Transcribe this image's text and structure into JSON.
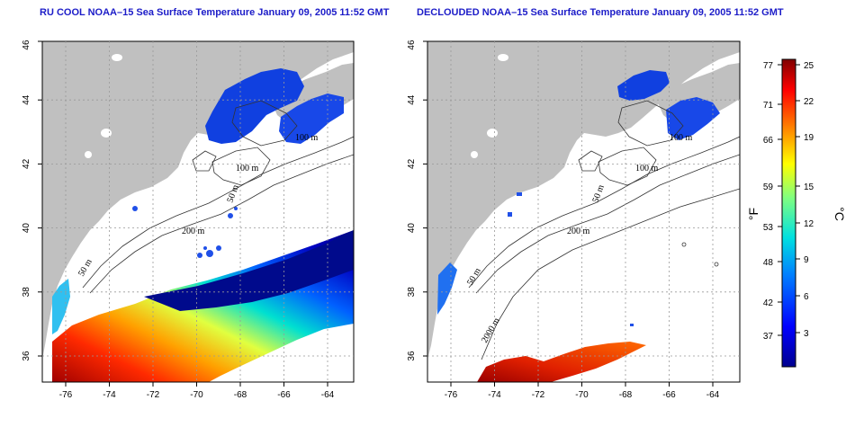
{
  "titles": {
    "left": "RU COOL NOAA–15 Sea Surface Temperature January 09, 2005 11:52 GMT",
    "right": "DECLOUDED NOAA–15 Sea Surface Temperature January 09, 2005 11:52 GMT"
  },
  "axes": {
    "lon_ticks": [
      "-76",
      "-74",
      "-72",
      "-70",
      "-68",
      "-66",
      "-64"
    ],
    "lat_ticks": [
      "36",
      "38",
      "40",
      "42",
      "44",
      "46"
    ]
  },
  "contours": {
    "left": [
      "50 m",
      "200 m",
      "100 m",
      "50 m",
      "100 m"
    ],
    "right": [
      "50 m",
      "2000 m",
      "200 m",
      "100 m",
      "50 m",
      "100 m"
    ]
  },
  "colorbar": {
    "fahrenheit": [
      "77",
      "71",
      "66",
      "59",
      "53",
      "48",
      "42",
      "37"
    ],
    "celsius": [
      "25",
      "22",
      "19",
      "15",
      "12",
      "9",
      "6",
      "3"
    ],
    "unit_f": "°F",
    "unit_c": "°C"
  },
  "colors": {
    "land": "#c0c0c0",
    "title": "#1c1cc8",
    "cold": "#08088c",
    "warm": "#a00000"
  }
}
